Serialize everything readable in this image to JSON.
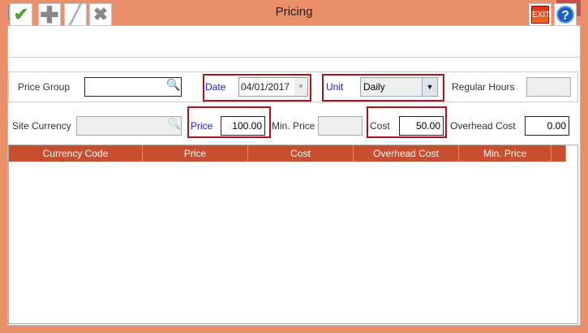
{
  "window": {
    "title": "Pricing",
    "logo": "R2",
    "close": "×"
  },
  "toolbar": {
    "save_icon": "check-icon",
    "add_icon": "plus-icon",
    "edit_icon": "pencil-icon",
    "delete_icon": "x-icon",
    "exit_label": "EXIT",
    "help_label": "?"
  },
  "form": {
    "price_group_label": "Price Group",
    "price_group_value": "",
    "date_label": "Date",
    "date_value": "04/01/2017",
    "unit_label": "Unit",
    "unit_value": "Daily",
    "regular_hours_label": "Regular Hours",
    "regular_hours_value": "",
    "site_currency_label": "Site Currency",
    "site_currency_value": "",
    "price_label": "Price",
    "price_value": "100.00",
    "min_price_label": "Min. Price",
    "min_price_value": "",
    "cost_label": "Cost",
    "cost_value": "50.00",
    "overhead_cost_label": "Overhead Cost",
    "overhead_cost_value": "0.00"
  },
  "table": {
    "columns": [
      "Currency Code",
      "Price",
      "Cost",
      "Overhead Cost",
      "Min. Price"
    ],
    "rows": []
  },
  "colors": {
    "frame": "#E9906A",
    "header": "#C74E2E",
    "highlight": "#B01018",
    "label_blue": "#1A1AEE"
  }
}
